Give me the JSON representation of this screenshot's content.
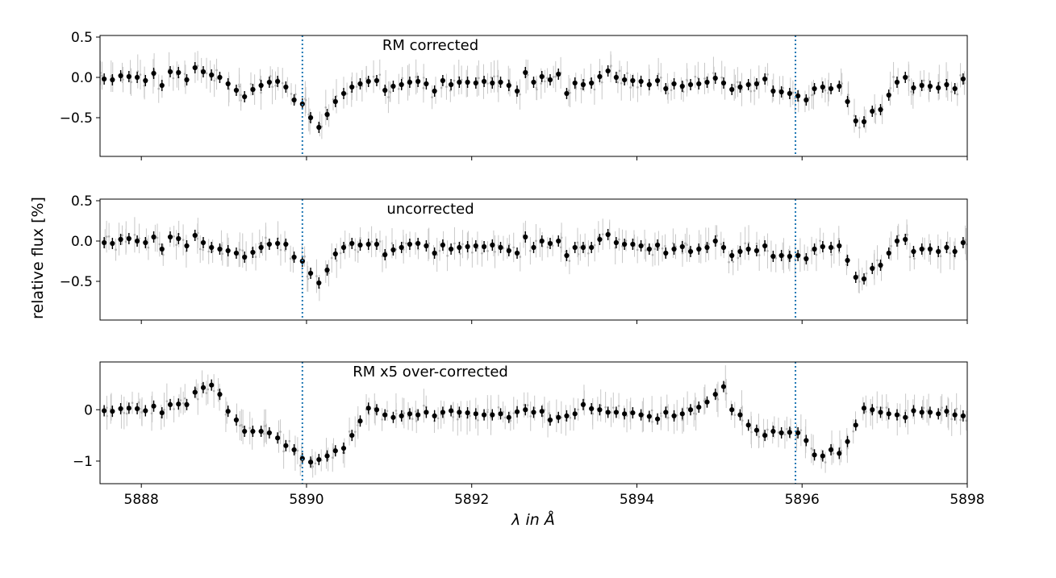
{
  "figure": {
    "ylabel": "relative flux [%]",
    "xlabel": "λ in Å",
    "line_color": "#1f77b4",
    "point_color": "#000000",
    "errorbar_color": "#c8c8c8"
  },
  "chart_data": [
    {
      "type": "scatter",
      "title": "RM corrected",
      "xlim": [
        5887.5,
        5898.0
      ],
      "ylim": [
        -0.98,
        0.52
      ],
      "yticks": [
        0.5,
        0.0,
        -0.5
      ],
      "ytick_labels": [
        "0.5",
        "0.0",
        "−0.5"
      ],
      "xticks": [
        5888,
        5890,
        5892,
        5894,
        5896,
        5898
      ],
      "xtick_labels": [],
      "vlines": [
        5889.95,
        5895.92
      ],
      "x": [
        5887.55,
        5887.65,
        5887.75,
        5887.85,
        5887.95,
        5888.05,
        5888.15,
        5888.25,
        5888.35,
        5888.45,
        5888.55,
        5888.65,
        5888.75,
        5888.85,
        5888.95,
        5889.05,
        5889.15,
        5889.25,
        5889.35,
        5889.45,
        5889.55,
        5889.65,
        5889.75,
        5889.85,
        5889.95,
        5890.05,
        5890.15,
        5890.25,
        5890.35,
        5890.45,
        5890.55,
        5890.65,
        5890.75,
        5890.85,
        5890.95,
        5891.05,
        5891.15,
        5891.25,
        5891.35,
        5891.45,
        5891.55,
        5891.65,
        5891.75,
        5891.85,
        5891.95,
        5892.05,
        5892.15,
        5892.25,
        5892.35,
        5892.45,
        5892.55,
        5892.65,
        5892.75,
        5892.85,
        5892.95,
        5893.05,
        5893.15,
        5893.25,
        5893.35,
        5893.45,
        5893.55,
        5893.65,
        5893.75,
        5893.85,
        5893.95,
        5894.05,
        5894.15,
        5894.25,
        5894.35,
        5894.45,
        5894.55,
        5894.65,
        5894.75,
        5894.85,
        5894.95,
        5895.05,
        5895.15,
        5895.25,
        5895.35,
        5895.45,
        5895.55,
        5895.65,
        5895.75,
        5895.85,
        5895.95,
        5896.05,
        5896.15,
        5896.25,
        5896.35,
        5896.45,
        5896.55,
        5896.65,
        5896.75,
        5896.85,
        5896.95,
        5897.05,
        5897.15,
        5897.25,
        5897.35,
        5897.45,
        5897.55,
        5897.65,
        5897.75,
        5897.85,
        5897.95
      ],
      "y": [
        -0.02,
        -0.03,
        0.02,
        0.01,
        0.0,
        -0.04,
        0.05,
        -0.1,
        0.07,
        0.06,
        -0.03,
        0.12,
        0.07,
        0.03,
        0.0,
        -0.08,
        -0.16,
        -0.24,
        -0.15,
        -0.1,
        -0.06,
        -0.05,
        -0.12,
        -0.28,
        -0.33,
        -0.5,
        -0.62,
        -0.46,
        -0.3,
        -0.2,
        -0.12,
        -0.08,
        -0.05,
        -0.04,
        -0.16,
        -0.11,
        -0.09,
        -0.06,
        -0.05,
        -0.08,
        -0.17,
        -0.04,
        -0.09,
        -0.06,
        -0.06,
        -0.07,
        -0.05,
        -0.07,
        -0.06,
        -0.1,
        -0.17,
        0.06,
        -0.06,
        0.01,
        -0.03,
        0.04,
        -0.2,
        -0.07,
        -0.09,
        -0.07,
        0.01,
        0.08,
        0.0,
        -0.03,
        -0.04,
        -0.05,
        -0.09,
        -0.04,
        -0.14,
        -0.08,
        -0.11,
        -0.09,
        -0.08,
        -0.06,
        -0.01,
        -0.07,
        -0.15,
        -0.12,
        -0.09,
        -0.08,
        -0.02,
        -0.17,
        -0.18,
        -0.2,
        -0.23,
        -0.28,
        -0.14,
        -0.12,
        -0.14,
        -0.11,
        -0.3,
        -0.54,
        -0.55,
        -0.42,
        -0.4,
        -0.22,
        -0.06,
        0.0,
        -0.13,
        -0.1,
        -0.11,
        -0.13,
        -0.09,
        -0.14,
        -0.02
      ]
    },
    {
      "type": "scatter",
      "title": "uncorrected",
      "xlim": [
        5887.5,
        5898.0
      ],
      "ylim": [
        -0.98,
        0.52
      ],
      "yticks": [
        0.5,
        0.0,
        -0.5
      ],
      "ytick_labels": [
        "0.5",
        "0.0",
        "−0.5"
      ],
      "xticks": [
        5888,
        5890,
        5892,
        5894,
        5896,
        5898
      ],
      "xtick_labels": [],
      "vlines": [
        5889.95,
        5895.92
      ],
      "x": [
        5887.55,
        5887.65,
        5887.75,
        5887.85,
        5887.95,
        5888.05,
        5888.15,
        5888.25,
        5888.35,
        5888.45,
        5888.55,
        5888.65,
        5888.75,
        5888.85,
        5888.95,
        5889.05,
        5889.15,
        5889.25,
        5889.35,
        5889.45,
        5889.55,
        5889.65,
        5889.75,
        5889.85,
        5889.95,
        5890.05,
        5890.15,
        5890.25,
        5890.35,
        5890.45,
        5890.55,
        5890.65,
        5890.75,
        5890.85,
        5890.95,
        5891.05,
        5891.15,
        5891.25,
        5891.35,
        5891.45,
        5891.55,
        5891.65,
        5891.75,
        5891.85,
        5891.95,
        5892.05,
        5892.15,
        5892.25,
        5892.35,
        5892.45,
        5892.55,
        5892.65,
        5892.75,
        5892.85,
        5892.95,
        5893.05,
        5893.15,
        5893.25,
        5893.35,
        5893.45,
        5893.55,
        5893.65,
        5893.75,
        5893.85,
        5893.95,
        5894.05,
        5894.15,
        5894.25,
        5894.35,
        5894.45,
        5894.55,
        5894.65,
        5894.75,
        5894.85,
        5894.95,
        5895.05,
        5895.15,
        5895.25,
        5895.35,
        5895.45,
        5895.55,
        5895.65,
        5895.75,
        5895.85,
        5895.95,
        5896.05,
        5896.15,
        5896.25,
        5896.35,
        5896.45,
        5896.55,
        5896.65,
        5896.75,
        5896.85,
        5896.95,
        5897.05,
        5897.15,
        5897.25,
        5897.35,
        5897.45,
        5897.55,
        5897.65,
        5897.75,
        5897.85,
        5897.95
      ],
      "y": [
        -0.02,
        -0.03,
        0.02,
        0.03,
        0.0,
        -0.02,
        0.05,
        -0.1,
        0.05,
        0.03,
        -0.06,
        0.07,
        -0.02,
        -0.08,
        -0.1,
        -0.12,
        -0.15,
        -0.2,
        -0.14,
        -0.08,
        -0.04,
        -0.03,
        -0.04,
        -0.2,
        -0.25,
        -0.4,
        -0.52,
        -0.36,
        -0.16,
        -0.08,
        -0.03,
        -0.05,
        -0.04,
        -0.04,
        -0.17,
        -0.11,
        -0.08,
        -0.04,
        -0.03,
        -0.06,
        -0.15,
        -0.05,
        -0.1,
        -0.08,
        -0.07,
        -0.06,
        -0.07,
        -0.05,
        -0.08,
        -0.12,
        -0.15,
        0.05,
        -0.08,
        0.0,
        -0.03,
        0.0,
        -0.18,
        -0.08,
        -0.08,
        -0.08,
        0.02,
        0.08,
        -0.02,
        -0.04,
        -0.04,
        -0.06,
        -0.1,
        -0.05,
        -0.15,
        -0.1,
        -0.07,
        -0.13,
        -0.1,
        -0.08,
        0.0,
        -0.08,
        -0.18,
        -0.13,
        -0.1,
        -0.12,
        -0.06,
        -0.19,
        -0.18,
        -0.19,
        -0.18,
        -0.22,
        -0.1,
        -0.07,
        -0.08,
        -0.06,
        -0.24,
        -0.45,
        -0.47,
        -0.34,
        -0.3,
        -0.15,
        0.0,
        0.02,
        -0.13,
        -0.1,
        -0.1,
        -0.13,
        -0.08,
        -0.13,
        -0.02
      ]
    },
    {
      "type": "scatter",
      "title": "RM x5 over-corrected",
      "xlim": [
        5887.5,
        5898.0
      ],
      "ylim": [
        -1.44,
        0.93
      ],
      "yticks": [
        0,
        -1
      ],
      "ytick_labels": [
        "0",
        "−1"
      ],
      "xticks": [
        5888,
        5890,
        5892,
        5894,
        5896,
        5898
      ],
      "xtick_labels": [
        "5888",
        "5890",
        "5892",
        "5894",
        "5896",
        "5898"
      ],
      "vlines": [
        5889.95,
        5895.92
      ],
      "x": [
        5887.55,
        5887.65,
        5887.75,
        5887.85,
        5887.95,
        5888.05,
        5888.15,
        5888.25,
        5888.35,
        5888.45,
        5888.55,
        5888.65,
        5888.75,
        5888.85,
        5888.95,
        5889.05,
        5889.15,
        5889.25,
        5889.35,
        5889.45,
        5889.55,
        5889.65,
        5889.75,
        5889.85,
        5889.95,
        5890.05,
        5890.15,
        5890.25,
        5890.35,
        5890.45,
        5890.55,
        5890.65,
        5890.75,
        5890.85,
        5890.95,
        5891.05,
        5891.15,
        5891.25,
        5891.35,
        5891.45,
        5891.55,
        5891.65,
        5891.75,
        5891.85,
        5891.95,
        5892.05,
        5892.15,
        5892.25,
        5892.35,
        5892.45,
        5892.55,
        5892.65,
        5892.75,
        5892.85,
        5892.95,
        5893.05,
        5893.15,
        5893.25,
        5893.35,
        5893.45,
        5893.55,
        5893.65,
        5893.75,
        5893.85,
        5893.95,
        5894.05,
        5894.15,
        5894.25,
        5894.35,
        5894.45,
        5894.55,
        5894.65,
        5894.75,
        5894.85,
        5894.95,
        5895.05,
        5895.15,
        5895.25,
        5895.35,
        5895.45,
        5895.55,
        5895.65,
        5895.75,
        5895.85,
        5895.95,
        5896.05,
        5896.15,
        5896.25,
        5896.35,
        5896.45,
        5896.55,
        5896.65,
        5896.75,
        5896.85,
        5896.95,
        5897.05,
        5897.15,
        5897.25,
        5897.35,
        5897.45,
        5897.55,
        5897.65,
        5897.75,
        5897.85,
        5897.95
      ],
      "y": [
        -0.02,
        -0.03,
        0.02,
        0.03,
        0.02,
        -0.02,
        0.07,
        -0.06,
        0.1,
        0.11,
        0.1,
        0.34,
        0.43,
        0.48,
        0.3,
        -0.03,
        -0.2,
        -0.42,
        -0.42,
        -0.42,
        -0.45,
        -0.55,
        -0.7,
        -0.78,
        -0.95,
        -1.02,
        -0.97,
        -0.9,
        -0.8,
        -0.75,
        -0.5,
        -0.22,
        0.03,
        0.0,
        -0.1,
        -0.15,
        -0.12,
        -0.08,
        -0.1,
        -0.05,
        -0.12,
        -0.05,
        -0.02,
        -0.05,
        -0.06,
        -0.08,
        -0.1,
        -0.1,
        -0.08,
        -0.15,
        -0.04,
        0.0,
        -0.05,
        -0.03,
        -0.2,
        -0.15,
        -0.12,
        -0.08,
        0.1,
        0.02,
        0.0,
        -0.05,
        -0.05,
        -0.08,
        -0.06,
        -0.1,
        -0.13,
        -0.18,
        -0.05,
        -0.12,
        -0.08,
        0.0,
        0.05,
        0.15,
        0.3,
        0.45,
        0.0,
        -0.1,
        -0.3,
        -0.4,
        -0.5,
        -0.42,
        -0.45,
        -0.44,
        -0.45,
        -0.6,
        -0.88,
        -0.9,
        -0.78,
        -0.85,
        -0.62,
        -0.3,
        0.03,
        0.0,
        -0.05,
        -0.08,
        -0.1,
        -0.15,
        -0.02,
        -0.05,
        -0.05,
        -0.08,
        -0.03,
        -0.1,
        -0.12
      ]
    }
  ]
}
